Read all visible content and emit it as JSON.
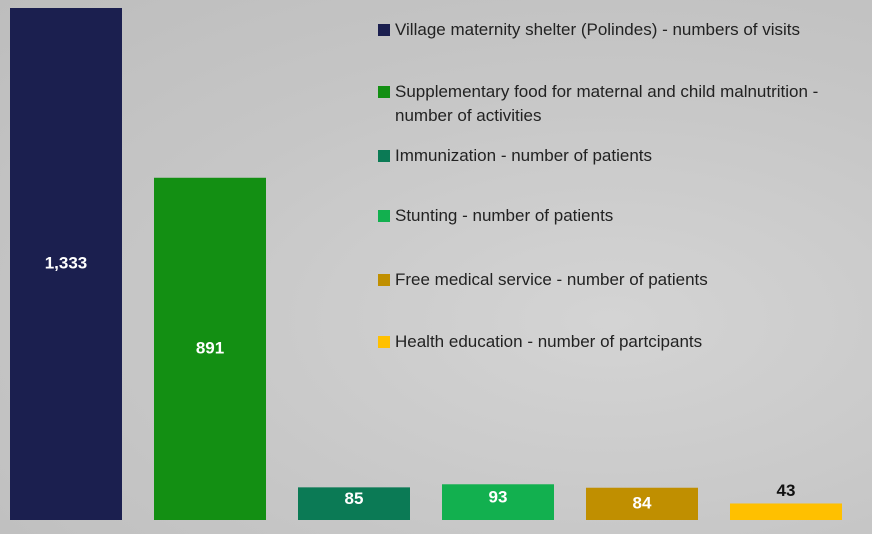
{
  "chart_data": {
    "type": "bar",
    "series": [
      {
        "name": "Village maternity shelter (Polindes) - numbers of visits",
        "color": "#1b1f4f",
        "values": [
          1333
        ],
        "value_labels": [
          "1,333"
        ]
      },
      {
        "name": "Supplementary food for maternal and child malnutrition - number of activities",
        "color": "#138f13",
        "values": [
          891
        ]
      },
      {
        "name": "Immunization - number of patients",
        "color": "#0b7a55",
        "values": [
          85
        ]
      },
      {
        "name": "Stunting - number of patients",
        "color": "#12b04f",
        "values": [
          93
        ]
      },
      {
        "name": "Free medical service - number of patients",
        "color": "#c08f00",
        "values": [
          84
        ]
      },
      {
        "name": "Health education - number of partcipants",
        "color": "#ffc000",
        "values": [
          43
        ]
      }
    ]
  }
}
